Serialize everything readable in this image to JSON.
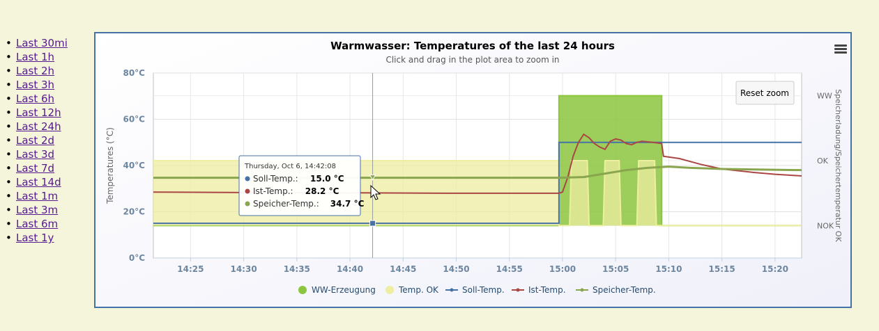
{
  "nav": {
    "items": [
      {
        "label": "Last 30mi"
      },
      {
        "label": "Last 1h"
      },
      {
        "label": "Last 2h"
      },
      {
        "label": "Last 3h"
      },
      {
        "label": "Last 6h"
      },
      {
        "label": "Last 12h"
      },
      {
        "label": "Last 24h"
      },
      {
        "label": "Last 2d"
      },
      {
        "label": "Last 3d"
      },
      {
        "label": "Last 7d"
      },
      {
        "label": "Last 14d"
      },
      {
        "label": "Last 1m"
      },
      {
        "label": "Last 3m"
      },
      {
        "label": "Last 6m"
      },
      {
        "label": "Last 1y"
      }
    ]
  },
  "chart": {
    "reset_zoom_label": "Reset zoom",
    "menu_icon": "hamburger-menu-icon"
  },
  "tooltip": {
    "header": "Thursday, Oct 6, 14:42:08",
    "rows": [
      {
        "name": "Soll-Temp.",
        "value": "15.0 °C",
        "color": "#4572a7"
      },
      {
        "name": "Ist-Temp.",
        "value": "28.2 °C",
        "color": "#aa4643"
      },
      {
        "name": "Speicher-Temp.",
        "value": "34.7 °C",
        "color": "#89a54e"
      }
    ]
  },
  "chart_data": {
    "type": "line",
    "title": "Warmwasser: Temperatures of the last 24 hours",
    "subtitle": "Click and drag in the plot area to zoom in",
    "ylabel": "Temperatures (°C)",
    "ylim": [
      0,
      80
    ],
    "y_ticks": [
      "0°C",
      "20°C",
      "40°C",
      "60°C",
      "80°C"
    ],
    "y_tick_values": [
      0,
      20,
      40,
      60,
      80
    ],
    "y2label": "Speicherladung/Speichertemperatur OK",
    "y2_ticks": [
      "NOK",
      "OK",
      "WW"
    ],
    "y2_tick_values": [
      0,
      1,
      2
    ],
    "y2lim": [
      -0.5,
      2.35
    ],
    "xlim": [
      "14:21:30",
      "15:22:30"
    ],
    "x_ticks": [
      "14:25",
      "14:30",
      "14:35",
      "14:40",
      "14:45",
      "14:50",
      "14:55",
      "15:00",
      "15:05",
      "15:10",
      "15:15",
      "15:20"
    ],
    "grid": true,
    "legend_position": "bottom",
    "colors": {
      "ww": "#8cc63e",
      "ok": "#eeeea0",
      "soll": "#4572a7",
      "ist": "#aa4643",
      "speicher": "#89a54e"
    },
    "series": [
      {
        "name": "WW-Erzeugung",
        "type": "area",
        "axis": "right",
        "points": [
          [
            "14:21:30",
            0
          ],
          [
            "14:59:40",
            0
          ],
          [
            "14:59:40",
            2
          ],
          [
            "15:09:20",
            2
          ],
          [
            "15:09:20",
            0
          ],
          [
            "15:22:30",
            0
          ]
        ]
      },
      {
        "name": "Temp. OK",
        "type": "area",
        "axis": "right",
        "points": [
          [
            "14:21:30",
            1
          ],
          [
            "14:59:40",
            1
          ],
          [
            "14:59:40",
            0
          ],
          [
            "15:00:40",
            0
          ],
          [
            "15:00:50",
            1
          ],
          [
            "15:02:20",
            1
          ],
          [
            "15:02:30",
            0
          ],
          [
            "15:03:50",
            0
          ],
          [
            "15:04:00",
            1
          ],
          [
            "15:05:20",
            1
          ],
          [
            "15:05:30",
            0
          ],
          [
            "15:07:00",
            0
          ],
          [
            "15:07:10",
            1
          ],
          [
            "15:08:40",
            1
          ],
          [
            "15:08:50",
            0
          ],
          [
            "15:22:30",
            0
          ]
        ]
      },
      {
        "name": "Soll-Temp.",
        "type": "line",
        "axis": "left",
        "points": [
          [
            "14:21:30",
            15.0
          ],
          [
            "14:59:40",
            15.0
          ],
          [
            "14:59:40",
            50.0
          ],
          [
            "15:22:30",
            50.0
          ]
        ]
      },
      {
        "name": "Ist-Temp.",
        "type": "line",
        "axis": "left",
        "points": [
          [
            "14:21:30",
            28.5
          ],
          [
            "14:30:00",
            28.3
          ],
          [
            "14:40:00",
            28.2
          ],
          [
            "14:50:00",
            28.0
          ],
          [
            "14:59:40",
            28.0
          ],
          [
            "15:00:00",
            28.5
          ],
          [
            "15:00:30",
            35.0
          ],
          [
            "15:01:00",
            44.0
          ],
          [
            "15:01:30",
            50.0
          ],
          [
            "15:02:00",
            53.5
          ],
          [
            "15:02:30",
            52.0
          ],
          [
            "15:03:00",
            49.5
          ],
          [
            "15:03:30",
            48.0
          ],
          [
            "15:04:00",
            47.0
          ],
          [
            "15:04:30",
            50.5
          ],
          [
            "15:05:00",
            51.5
          ],
          [
            "15:05:30",
            51.0
          ],
          [
            "15:06:00",
            49.5
          ],
          [
            "15:06:30",
            49.0
          ],
          [
            "15:07:00",
            50.0
          ],
          [
            "15:07:30",
            50.5
          ],
          [
            "15:08:30",
            50.0
          ],
          [
            "15:09:20",
            49.5
          ],
          [
            "15:09:30",
            44.0
          ],
          [
            "15:11:00",
            43.0
          ],
          [
            "15:13:00",
            40.5
          ],
          [
            "15:15:00",
            38.5
          ],
          [
            "15:18:00",
            37.0
          ],
          [
            "15:20:00",
            36.2
          ],
          [
            "15:22:30",
            35.5
          ]
        ]
      },
      {
        "name": "Speicher-Temp.",
        "type": "line",
        "axis": "left",
        "points": [
          [
            "14:21:30",
            34.7
          ],
          [
            "14:40:00",
            34.7
          ],
          [
            "14:59:40",
            34.7
          ],
          [
            "15:02:00",
            35.0
          ],
          [
            "15:04:00",
            36.5
          ],
          [
            "15:06:00",
            38.0
          ],
          [
            "15:08:00",
            39.0
          ],
          [
            "15:10:00",
            39.5
          ],
          [
            "15:12:00",
            39.0
          ],
          [
            "15:15:00",
            38.5
          ],
          [
            "15:22:30",
            38.0
          ]
        ]
      }
    ]
  }
}
